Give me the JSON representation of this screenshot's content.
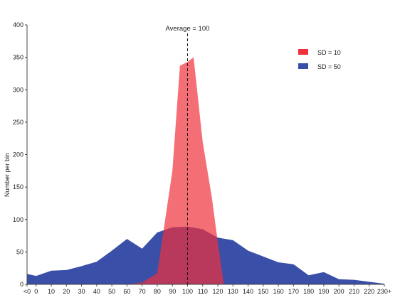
{
  "chart_data": {
    "type": "area",
    "title": "",
    "xlabel": "",
    "ylabel": "Number per bin",
    "categories": [
      "<0",
      "0",
      "10",
      "20",
      "30",
      "40",
      "50",
      "60",
      "70",
      "80",
      "90",
      "100",
      "110",
      "120",
      "130",
      "140",
      "150",
      "160",
      "170",
      "180",
      "190",
      "200",
      "210",
      "220",
      "230+"
    ],
    "x_plot": [
      -6,
      0,
      10,
      20,
      30,
      40,
      50,
      60,
      70,
      80,
      90,
      100,
      110,
      120,
      130,
      140,
      150,
      160,
      170,
      180,
      190,
      200,
      210,
      220,
      230
    ],
    "ylim": [
      0,
      400
    ],
    "yticks": [
      0,
      50,
      100,
      150,
      200,
      250,
      300,
      350,
      400
    ],
    "grid": false,
    "legend_position": "top-right",
    "series": [
      {
        "name": "SD = 50",
        "color": "#3a4fa8",
        "x": [
          -6,
          0,
          10,
          20,
          30,
          40,
          50,
          60,
          70,
          80,
          90,
          100,
          110,
          120,
          130,
          140,
          150,
          160,
          170,
          180,
          190,
          200,
          210,
          220,
          230
        ],
        "values": [
          16,
          13,
          21,
          22,
          28,
          35,
          52,
          70,
          55,
          80,
          88,
          89,
          85,
          72,
          68,
          52,
          43,
          34,
          31,
          14,
          19,
          8,
          7,
          4,
          1
        ]
      },
      {
        "name": "SD = 10",
        "color": "#f0303c",
        "x": [
          60,
          70,
          80,
          90,
          95,
          100,
          104,
          110,
          116,
          120,
          124
        ],
        "values": [
          0,
          3,
          17,
          175,
          337,
          343,
          350,
          220,
          135,
          65,
          0
        ]
      }
    ],
    "annotations": [
      {
        "text": "Average = 100",
        "x": 100
      }
    ]
  }
}
